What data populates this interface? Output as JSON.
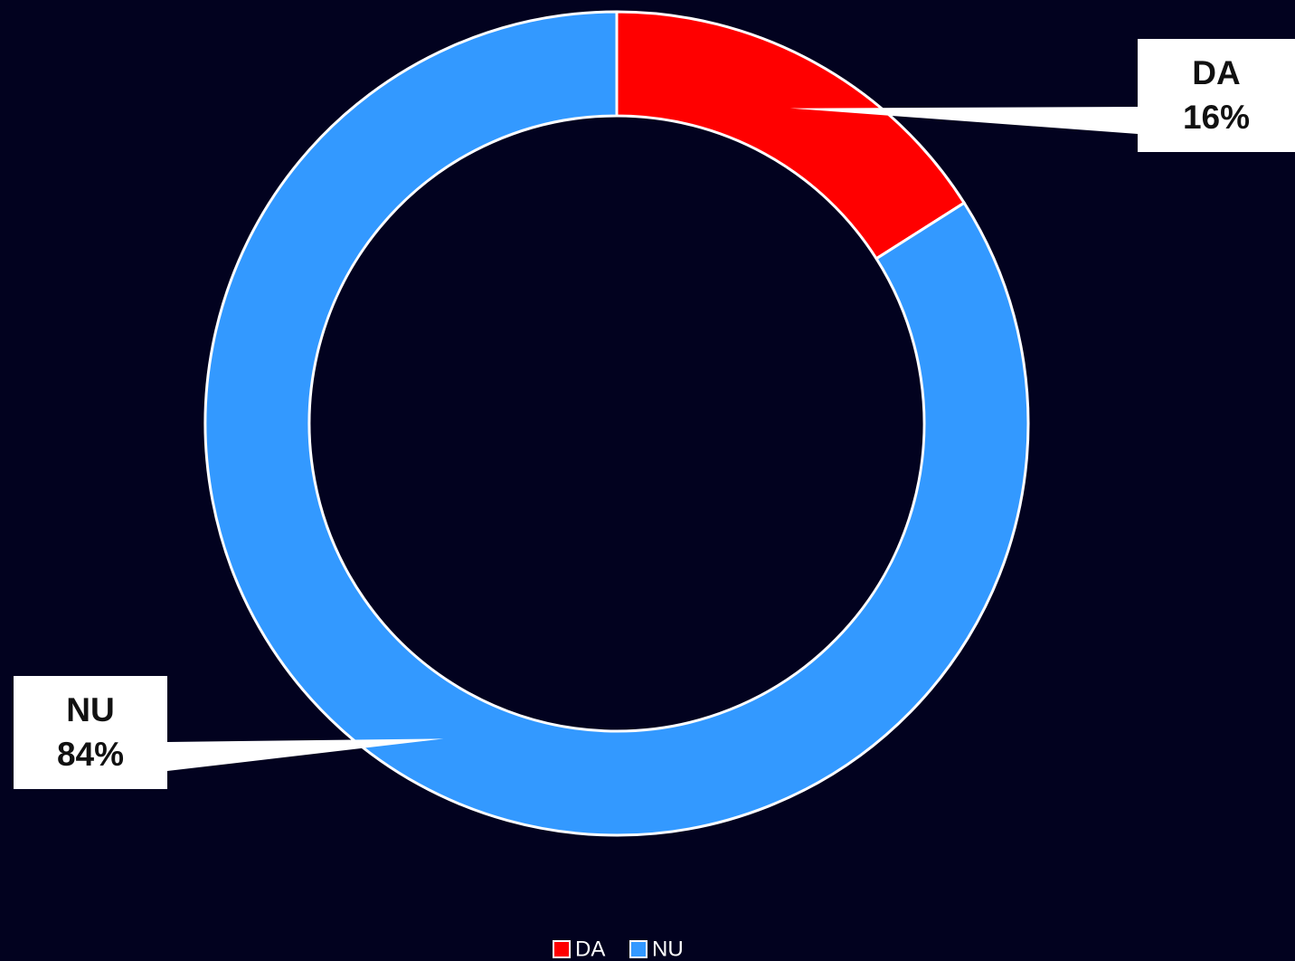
{
  "chart_data": {
    "type": "donut",
    "categories": [
      "DA",
      "NU"
    ],
    "values": [
      16,
      84
    ],
    "value_labels": [
      "16%",
      "84%"
    ],
    "colors": [
      "#ff0000",
      "#3399ff"
    ],
    "legend": "bottom"
  }
}
